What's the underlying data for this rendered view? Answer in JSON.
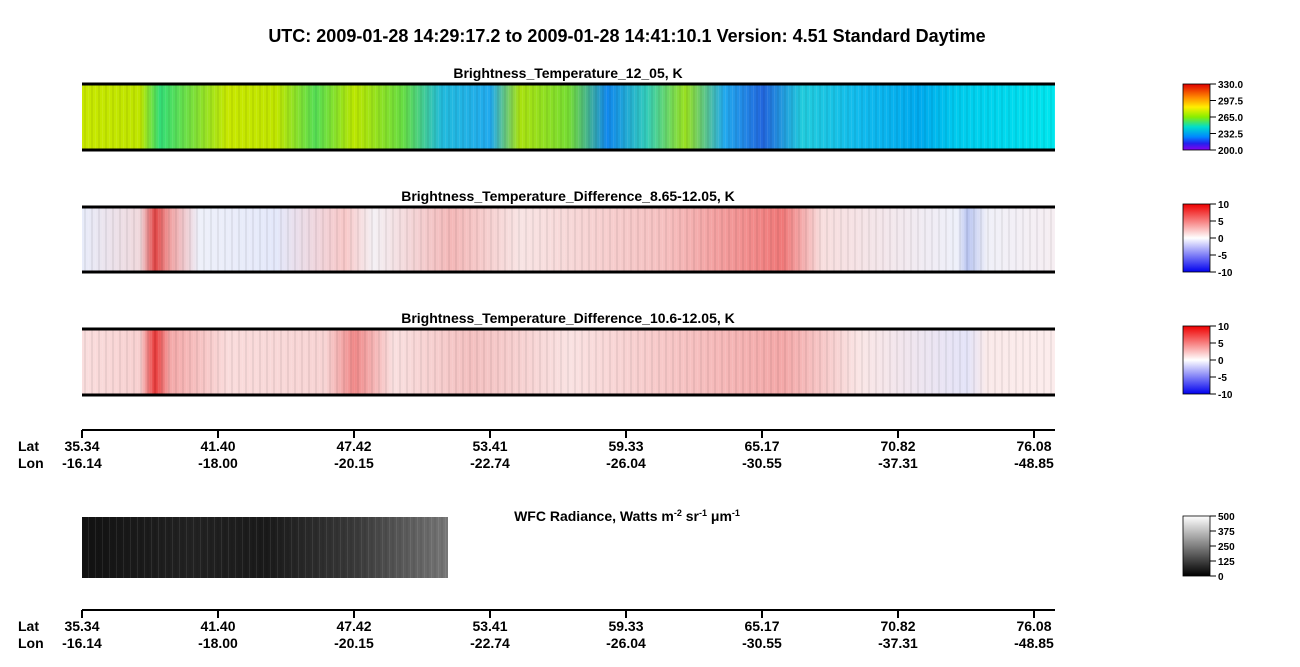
{
  "header": {
    "title": "UTC:  2009-01-28   14:29:17.2  to  2009-01-28   14:41:10.1    Version: 4.51  Standard Daytime"
  },
  "panels": [
    {
      "title": "Brightness_Temperature_12_05, K",
      "colorbar": [
        "330.0",
        "297.5",
        "265.0",
        "232.5",
        "200.0"
      ]
    },
    {
      "title": "Brightness_Temperature_Difference_8.65-12.05, K",
      "colorbar": [
        "10",
        "5",
        "0",
        "-5",
        "-10"
      ]
    },
    {
      "title": "Brightness_Temperature_Difference_10.6-12.05, K",
      "colorbar": [
        "10",
        "5",
        "0",
        "-5",
        "-10"
      ]
    }
  ],
  "track_axis": {
    "lat_label": "Lat",
    "lon_label": "Lon",
    "lat": [
      "35.34",
      "41.40",
      "47.42",
      "53.41",
      "59.33",
      "65.17",
      "70.82",
      "76.08"
    ],
    "lon": [
      "-16.14",
      "-18.00",
      "-20.15",
      "-22.74",
      "-26.04",
      "-30.55",
      "-37.31",
      "-48.85"
    ]
  },
  "wfc": {
    "title_parts": [
      {
        "text": "WFC Radiance, Watts m"
      },
      {
        "sup": "-2"
      },
      {
        "text": " sr"
      },
      {
        "sup": "-1"
      },
      {
        "text": " μm"
      },
      {
        "sup": "-1"
      }
    ],
    "colorbar": [
      "500",
      "375",
      "250",
      "125",
      "0"
    ]
  }
}
